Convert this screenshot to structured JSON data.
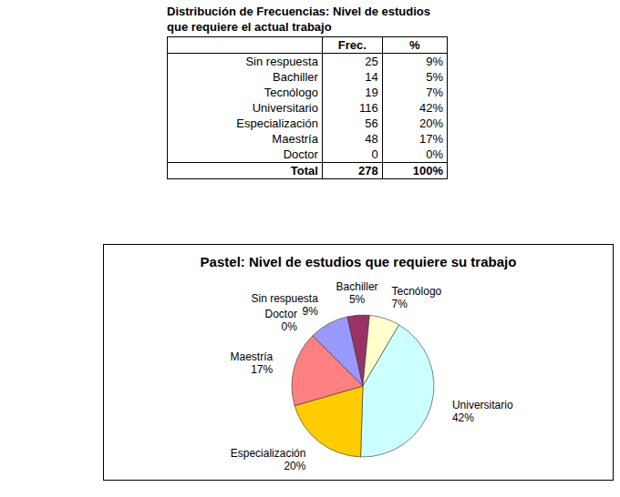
{
  "table": {
    "title": "Distribución de Frecuencias: Nivel de estudios que requiere el actual trabajo",
    "header": [
      "Frec.",
      "%"
    ],
    "rows": [
      [
        "Sin respuesta",
        25,
        "9%"
      ],
      [
        "Bachiller",
        14,
        "5%"
      ],
      [
        "Tecnólogo",
        19,
        "7%"
      ],
      [
        "Universitario",
        116,
        "42%"
      ],
      [
        "Especialización",
        56,
        "20%"
      ],
      [
        "Maestría",
        48,
        "17%"
      ],
      [
        "Doctor",
        0,
        "0%"
      ]
    ],
    "total": [
      "Total",
      278,
      "100%"
    ]
  },
  "chart_data": {
    "type": "pie",
    "title": "Pastel: Nivel de estudios que requiere su trabajo",
    "categories": [
      "Sin respuesta",
      "Bachiller",
      "Tecnólogo",
      "Universitario",
      "Especialización",
      "Maestría",
      "Doctor"
    ],
    "values": [
      9,
      5,
      7,
      42,
      20,
      17,
      0
    ],
    "value_labels": [
      "9%",
      "5%",
      "7%",
      "42%",
      "20%",
      "17%",
      "0%"
    ],
    "colors": [
      "#9999ff",
      "#993366",
      "#ffffcc",
      "#ccffff",
      "#ffcc00",
      "#ff8080",
      "#000080"
    ],
    "data_labels": true
  }
}
